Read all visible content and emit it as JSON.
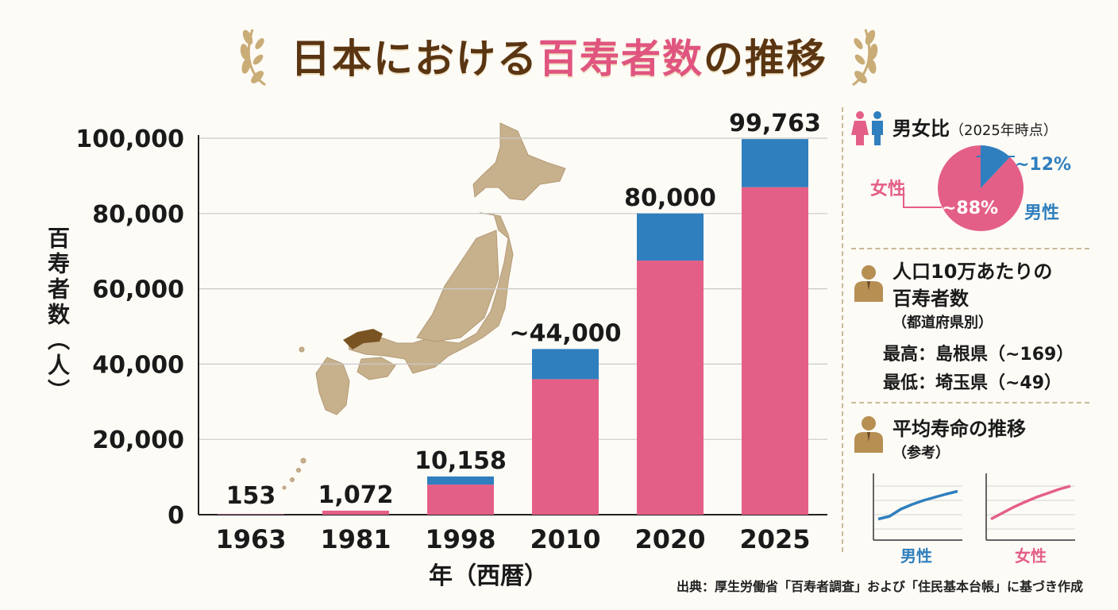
{
  "title": {
    "part1": "日本における",
    "highlight": "百寿者数",
    "part2": "の推移"
  },
  "colors": {
    "female": "#e45f86",
    "male": "#2f7fbe",
    "title_brown": "#5a3512",
    "map": "#c7b08c",
    "map_highlight": "#7a5322"
  },
  "chart_data": {
    "type": "bar",
    "stacked": true,
    "categories": [
      "1963",
      "1981",
      "1998",
      "2010",
      "2020",
      "2025"
    ],
    "series": [
      {
        "name": "女性",
        "values": [
          120,
          1072,
          8000,
          36000,
          67500,
          87000
        ]
      },
      {
        "name": "男性",
        "values": [
          33,
          0,
          2158,
          8000,
          12500,
          12763
        ]
      }
    ],
    "totals_labels": [
      "153",
      "1,072",
      "10,158",
      "~44,000",
      "80,000",
      "99,763"
    ],
    "totals": [
      153,
      1072,
      10158,
      44000,
      80000,
      99763
    ],
    "ylabel": "百寿者数（人）",
    "xlabel": "年（西暦）",
    "ylim": [
      0,
      100000
    ],
    "yticks": [
      0,
      20000,
      40000,
      60000,
      80000,
      100000
    ],
    "ytick_labels": [
      "0",
      "20,000",
      "40,000",
      "60,000",
      "80,000",
      "100,000"
    ],
    "grid": true
  },
  "sidebar": {
    "gender": {
      "title": "男女比",
      "subtitle": "（2025年時点）",
      "female_label": "女性",
      "male_label": "男性",
      "female_pct_label": "~88%",
      "male_pct_label": "~12%",
      "female_pct": 88,
      "male_pct": 12
    },
    "per_capita": {
      "title_line1": "人口10万あたりの",
      "title_line2": "百寿者数",
      "subtitle": "（都道府県別）",
      "highest": "最高：島根県（~169）",
      "lowest": "最低：埼玉県（~49）"
    },
    "life_expectancy": {
      "title": "平均寿命の推移",
      "subtitle": "（参考）",
      "male_label": "男性",
      "female_label": "女性",
      "male_trend": [
        0.05,
        0.12,
        0.3,
        0.42,
        0.52,
        0.6,
        0.68,
        0.75
      ],
      "female_trend": [
        0.05,
        0.2,
        0.35,
        0.48,
        0.6,
        0.7,
        0.8,
        0.88
      ]
    }
  },
  "source": "出典：厚生労働省「百寿者調査」および「住民基本台帳」に基づき作成"
}
